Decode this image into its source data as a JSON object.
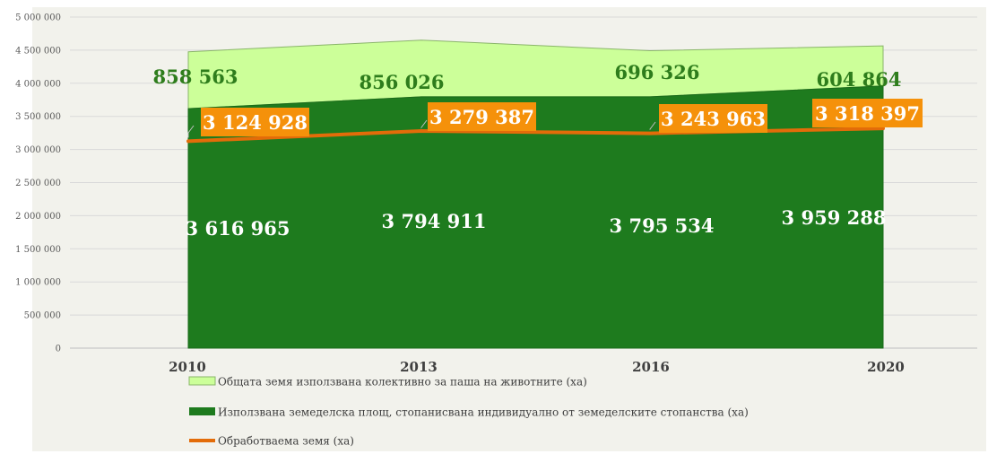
{
  "chart_data": {
    "type": "area",
    "categories": [
      "2010",
      "2013",
      "2016",
      "2020"
    ],
    "series": [
      {
        "name": "Използвана земеделска площ, стопанисвана индивидуално от земеделските стопанства (ха)",
        "kind": "area",
        "values": [
          3616965,
          3794911,
          3795534,
          3959288
        ],
        "labels": [
          "3 616 965",
          "3 794 911",
          "3 795 534",
          "3 959 288"
        ],
        "color": "#1e7b1e"
      },
      {
        "name": "Общата земя използвана колективно за паша на животните (ха)",
        "kind": "stacked-area",
        "values": [
          858563,
          856026,
          696326,
          604864
        ],
        "labels": [
          "858 563",
          "856 026",
          "696 326",
          "604 864"
        ],
        "color": "#ccff99"
      },
      {
        "name": "Обработваема земя (ха)",
        "kind": "line",
        "values": [
          3124928,
          3279387,
          3243963,
          3318397
        ],
        "labels": [
          "3 124 928",
          "3 279 387",
          "3 243 963",
          "3 318 397"
        ],
        "color": "#e36c09"
      }
    ],
    "ylim": [
      0,
      5000000
    ],
    "yticks": [
      0,
      500000,
      1000000,
      1500000,
      2000000,
      2500000,
      3000000,
      3500000,
      4000000,
      4500000,
      5000000
    ],
    "ytick_labels": [
      "0",
      "500 000",
      "1 000 000",
      "1 500 000",
      "2 000 000",
      "2 500 000",
      "3 000 000",
      "3 500 000",
      "4 000 000",
      "4 500 000",
      "5 000 000"
    ],
    "grid": true,
    "legend_position": "bottom",
    "legend_order": [
      1,
      0,
      2
    ]
  }
}
